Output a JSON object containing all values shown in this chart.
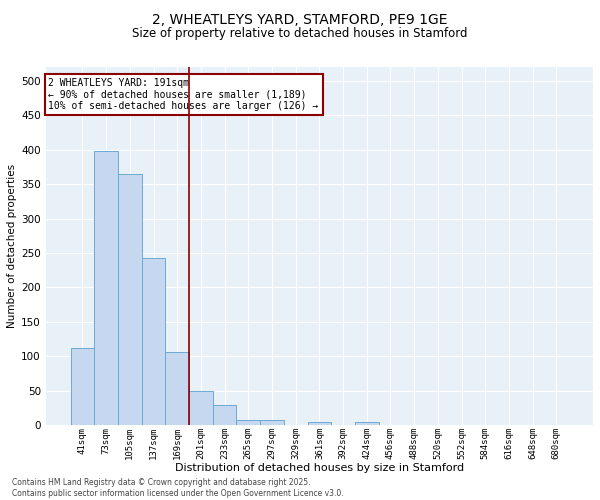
{
  "title_line1": "2, WHEATLEYS YARD, STAMFORD, PE9 1GE",
  "title_line2": "Size of property relative to detached houses in Stamford",
  "xlabel": "Distribution of detached houses by size in Stamford",
  "ylabel": "Number of detached properties",
  "categories": [
    "41sqm",
    "73sqm",
    "105sqm",
    "137sqm",
    "169sqm",
    "201sqm",
    "233sqm",
    "265sqm",
    "297sqm",
    "329sqm",
    "361sqm",
    "392sqm",
    "424sqm",
    "456sqm",
    "488sqm",
    "520sqm",
    "552sqm",
    "584sqm",
    "616sqm",
    "648sqm",
    "680sqm"
  ],
  "values": [
    112,
    398,
    365,
    243,
    107,
    50,
    30,
    8,
    8,
    0,
    5,
    0,
    4,
    1,
    0,
    0,
    0,
    0,
    0,
    0,
    1
  ],
  "bar_color": "#c5d8f0",
  "bar_edge_color": "#6aaad4",
  "vline_x": 4.5,
  "vline_color": "#8b0000",
  "annotation_text": "2 WHEATLEYS YARD: 191sqm\n← 90% of detached houses are smaller (1,189)\n10% of semi-detached houses are larger (126) →",
  "annotation_box_color": "white",
  "annotation_box_edge_color": "#8b0000",
  "ylim": [
    0,
    520
  ],
  "yticks": [
    0,
    50,
    100,
    150,
    200,
    250,
    300,
    350,
    400,
    450,
    500
  ],
  "background_color": "#e8f0f8",
  "grid_color": "white",
  "footer_line1": "Contains HM Land Registry data © Crown copyright and database right 2025.",
  "footer_line2": "Contains public sector information licensed under the Open Government Licence v3.0."
}
